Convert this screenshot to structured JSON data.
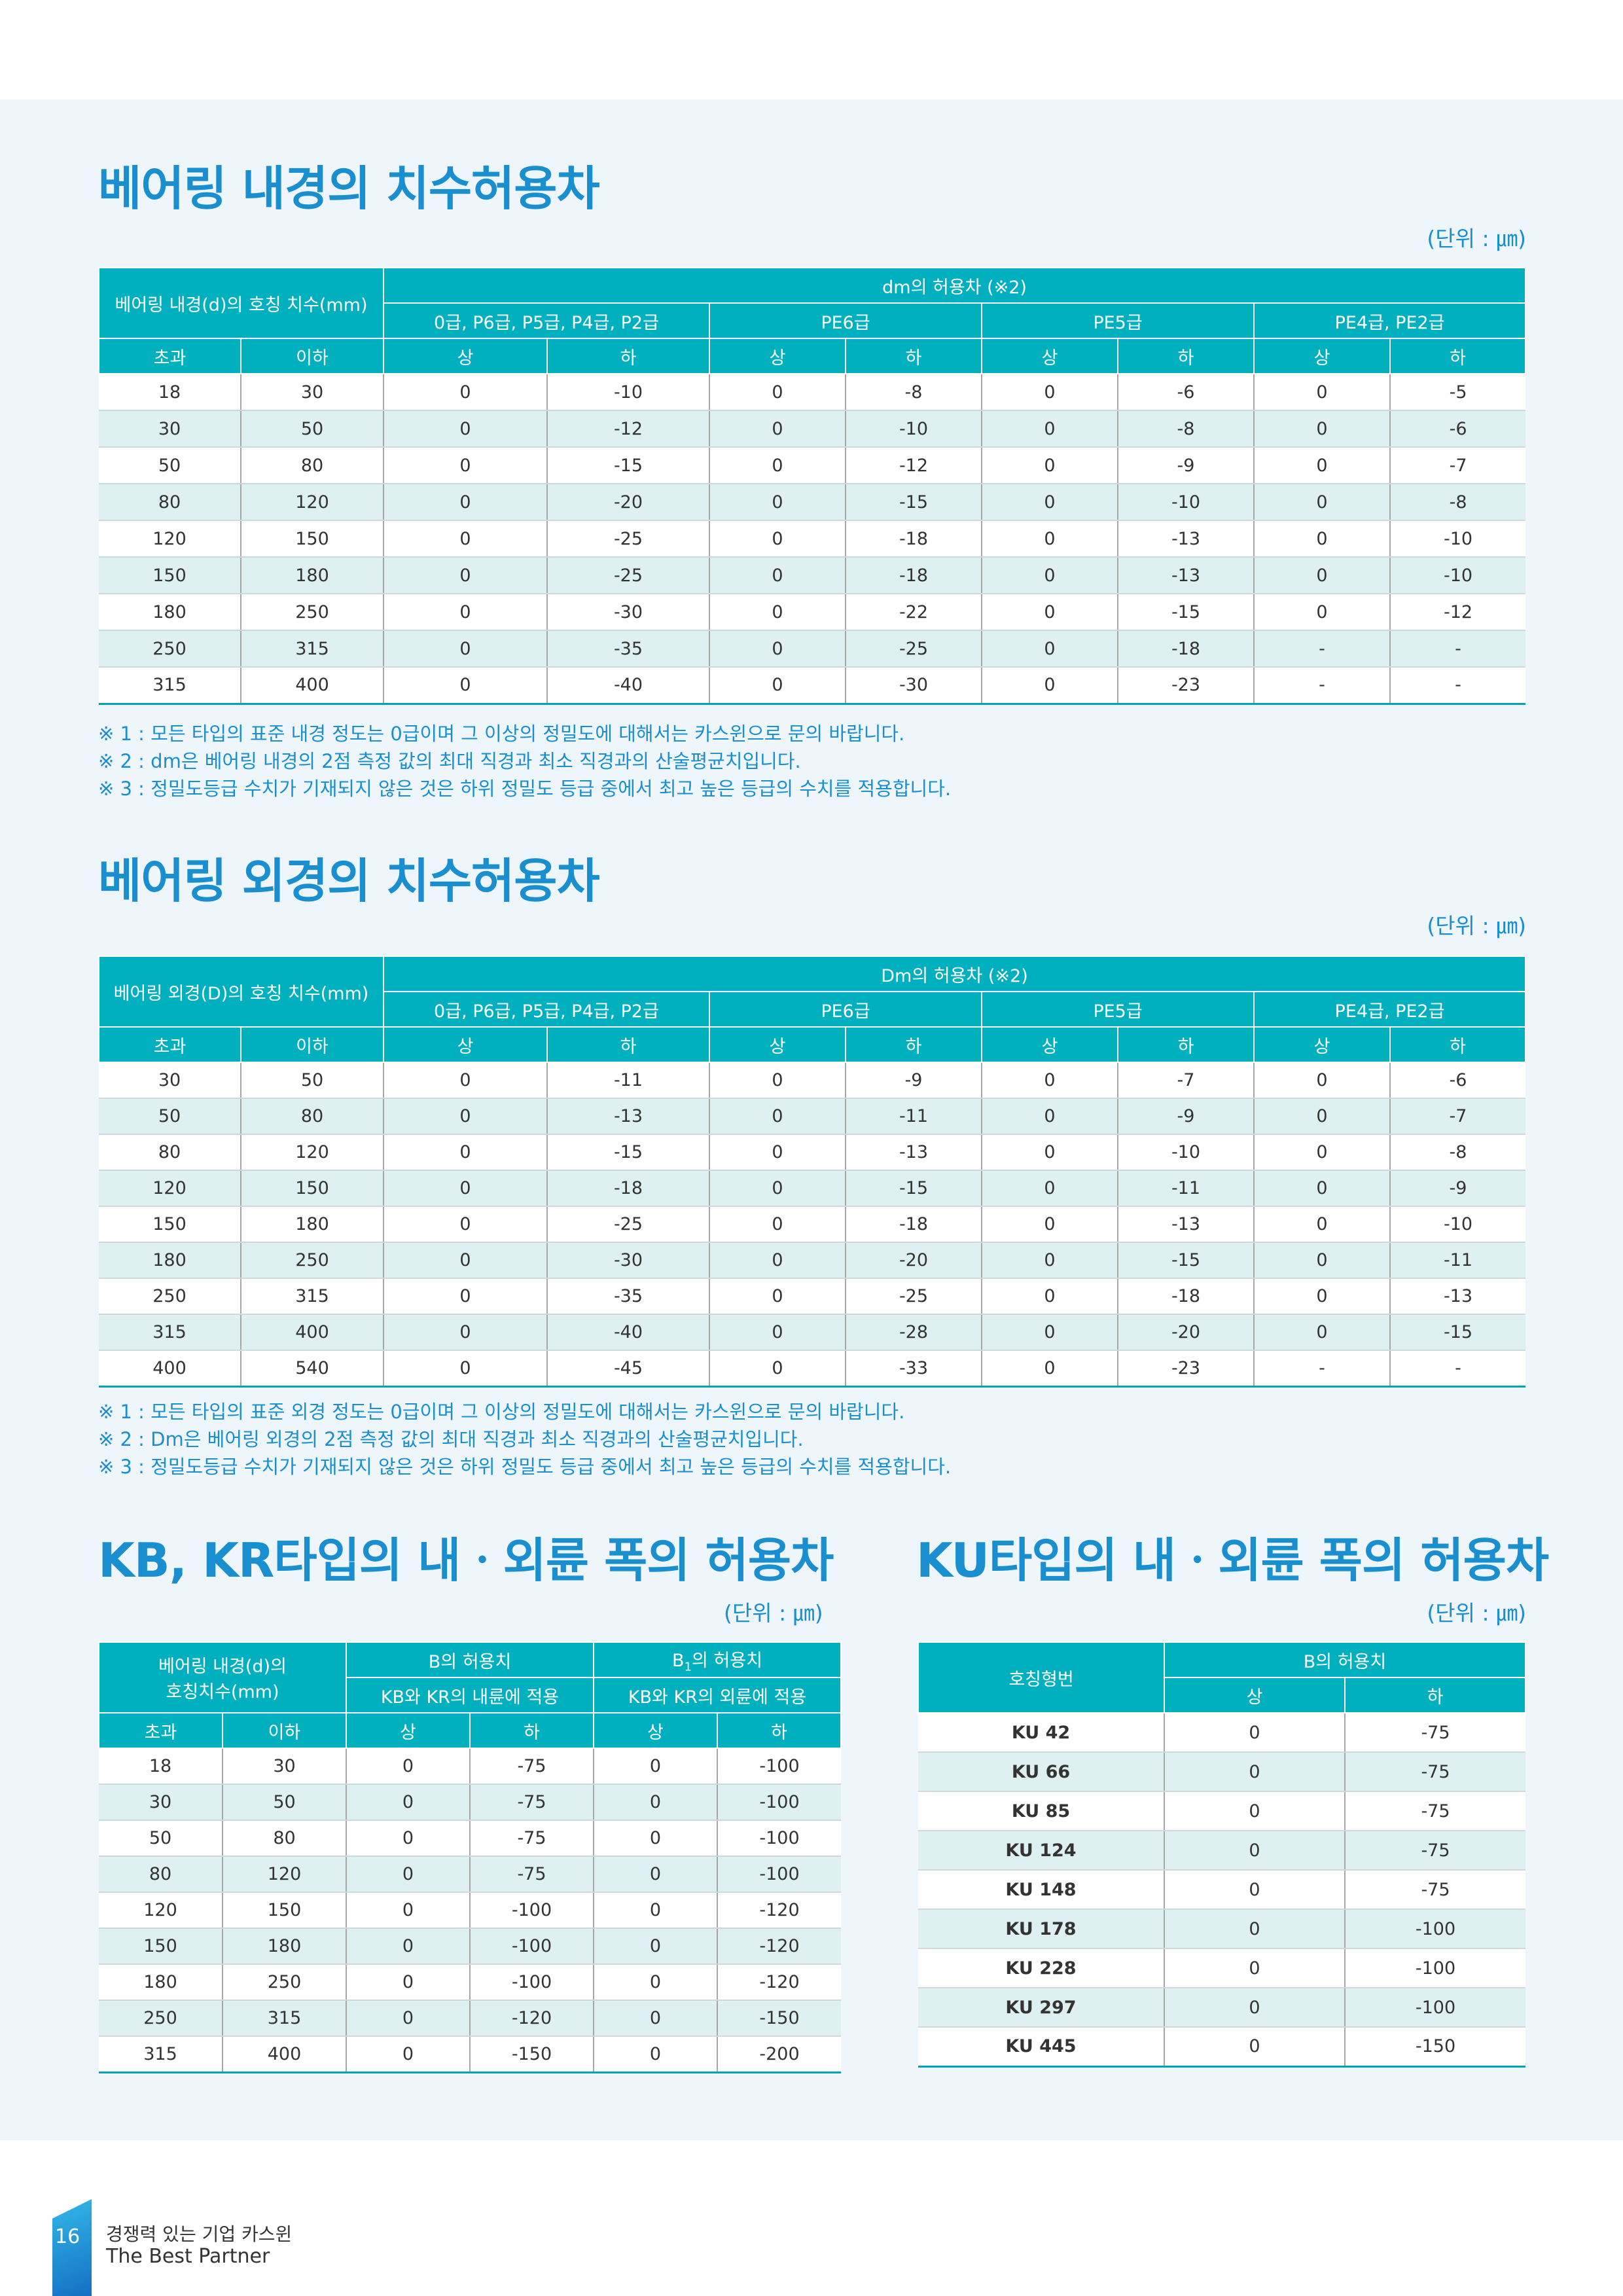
{
  "s1": {
    "title": "베어링 내경의 치수허용차",
    "unit": "(단위 : ㎛)",
    "head": {
      "nominal": "베어링 내경(d)의 호칭 치수(mm)",
      "tol": "dm의 허용차 (※2)",
      "g1": "0급, P6급, P5급, P4급, P2급",
      "g2": "PE6급",
      "g3": "PE5급",
      "g4": "PE4급, PE2급",
      "over": "초과",
      "incl": "이하",
      "up": "상",
      "low": "하"
    },
    "rows": [
      [
        "18",
        "30",
        "0",
        "-10",
        "0",
        "-8",
        "0",
        "-6",
        "0",
        "-5"
      ],
      [
        "30",
        "50",
        "0",
        "-12",
        "0",
        "-10",
        "0",
        "-8",
        "0",
        "-6"
      ],
      [
        "50",
        "80",
        "0",
        "-15",
        "0",
        "-12",
        "0",
        "-9",
        "0",
        "-7"
      ],
      [
        "80",
        "120",
        "0",
        "-20",
        "0",
        "-15",
        "0",
        "-10",
        "0",
        "-8"
      ],
      [
        "120",
        "150",
        "0",
        "-25",
        "0",
        "-18",
        "0",
        "-13",
        "0",
        "-10"
      ],
      [
        "150",
        "180",
        "0",
        "-25",
        "0",
        "-18",
        "0",
        "-13",
        "0",
        "-10"
      ],
      [
        "180",
        "250",
        "0",
        "-30",
        "0",
        "-22",
        "0",
        "-15",
        "0",
        "-12"
      ],
      [
        "250",
        "315",
        "0",
        "-35",
        "0",
        "-25",
        "0",
        "-18",
        "-",
        "-"
      ],
      [
        "315",
        "400",
        "0",
        "-40",
        "0",
        "-30",
        "0",
        "-23",
        "-",
        "-"
      ]
    ],
    "notes": [
      "※ 1 : 모든 타입의 표준 내경 정도는 0급이며 그 이상의 정밀도에 대해서는 카스윈으로 문의 바랍니다.",
      "※ 2 : dm은 베어링 내경의 2점 측정 값의 최대 직경과 최소 직경과의 산술평균치입니다.",
      "※ 3 : 정밀도등급 수치가 기재되지 않은 것은 하위 정밀도 등급 중에서 최고 높은 등급의 수치를 적용합니다."
    ]
  },
  "s2": {
    "title": "베어링 외경의 치수허용차",
    "unit": "(단위 : ㎛)",
    "head": {
      "nominal": "베어링 외경(D)의 호칭 치수(mm)",
      "tol": "Dm의 허용차 (※2)",
      "g1": "0급, P6급, P5급, P4급, P2급",
      "g2": "PE6급",
      "g3": "PE5급",
      "g4": "PE4급, PE2급",
      "over": "초과",
      "incl": "이하",
      "up": "상",
      "low": "하"
    },
    "rows": [
      [
        "30",
        "50",
        "0",
        "-11",
        "0",
        "-9",
        "0",
        "-7",
        "0",
        "-6"
      ],
      [
        "50",
        "80",
        "0",
        "-13",
        "0",
        "-11",
        "0",
        "-9",
        "0",
        "-7"
      ],
      [
        "80",
        "120",
        "0",
        "-15",
        "0",
        "-13",
        "0",
        "-10",
        "0",
        "-8"
      ],
      [
        "120",
        "150",
        "0",
        "-18",
        "0",
        "-15",
        "0",
        "-11",
        "0",
        "-9"
      ],
      [
        "150",
        "180",
        "0",
        "-25",
        "0",
        "-18",
        "0",
        "-13",
        "0",
        "-10"
      ],
      [
        "180",
        "250",
        "0",
        "-30",
        "0",
        "-20",
        "0",
        "-15",
        "0",
        "-11"
      ],
      [
        "250",
        "315",
        "0",
        "-35",
        "0",
        "-25",
        "0",
        "-18",
        "0",
        "-13"
      ],
      [
        "315",
        "400",
        "0",
        "-40",
        "0",
        "-28",
        "0",
        "-20",
        "0",
        "-15"
      ],
      [
        "400",
        "540",
        "0",
        "-45",
        "0",
        "-33",
        "0",
        "-23",
        "-",
        "-"
      ]
    ],
    "notes": [
      "※ 1 : 모든 타입의 표준 외경 정도는 0급이며 그 이상의 정밀도에 대해서는 카스윈으로 문의 바랍니다.",
      "※ 2 : Dm은 베어링 외경의 2점 측정 값의 최대 직경과 최소 직경과의 산술평균치입니다.",
      "※ 3 : 정밀도등급 수치가 기재되지 않은 것은 하위 정밀도 등급 중에서 최고 높은 등급의 수치를 적용합니다."
    ]
  },
  "s3": {
    "title": "KB, KR타입의 내ㆍ외륜 폭의 허용차",
    "unit": "(단위 : ㎛)",
    "head": {
      "nominal_l1": "베어링 내경(d)의",
      "nominal_l2": "호칭치수(mm)",
      "b_tol": "B의 허용치",
      "b1_pre": "B",
      "b1_sub": "1",
      "b1_post": "의 허용치",
      "b_apply": "KB와 KR의 내륜에 적용",
      "b1_apply": "KB와 KR의 외륜에 적용",
      "over": "초과",
      "incl": "이하",
      "up": "상",
      "low": "하"
    },
    "rows": [
      [
        "18",
        "30",
        "0",
        "-75",
        "0",
        "-100"
      ],
      [
        "30",
        "50",
        "0",
        "-75",
        "0",
        "-100"
      ],
      [
        "50",
        "80",
        "0",
        "-75",
        "0",
        "-100"
      ],
      [
        "80",
        "120",
        "0",
        "-75",
        "0",
        "-100"
      ],
      [
        "120",
        "150",
        "0",
        "-100",
        "0",
        "-120"
      ],
      [
        "150",
        "180",
        "0",
        "-100",
        "0",
        "-120"
      ],
      [
        "180",
        "250",
        "0",
        "-100",
        "0",
        "-120"
      ],
      [
        "250",
        "315",
        "0",
        "-120",
        "0",
        "-150"
      ],
      [
        "315",
        "400",
        "0",
        "-150",
        "0",
        "-200"
      ]
    ]
  },
  "s4": {
    "title": "KU타입의 내ㆍ외륜 폭의 허용차",
    "unit": "(단위 : ㎛)",
    "head": {
      "model": "호칭형번",
      "b_tol": "B의 허용치",
      "up": "상",
      "low": "하"
    },
    "rows": [
      [
        "KU 42",
        "0",
        "-75"
      ],
      [
        "KU 66",
        "0",
        "-75"
      ],
      [
        "KU 85",
        "0",
        "-75"
      ],
      [
        "KU 124",
        "0",
        "-75"
      ],
      [
        "KU 148",
        "0",
        "-75"
      ],
      [
        "KU 178",
        "0",
        "-100"
      ],
      [
        "KU 228",
        "0",
        "-100"
      ],
      [
        "KU 297",
        "0",
        "-100"
      ],
      [
        "KU 445",
        "0",
        "-150"
      ]
    ]
  },
  "footer": {
    "page": "16",
    "line1": "경쟁력 있는 기업 카스윈",
    "line2": "The Best Partner"
  }
}
